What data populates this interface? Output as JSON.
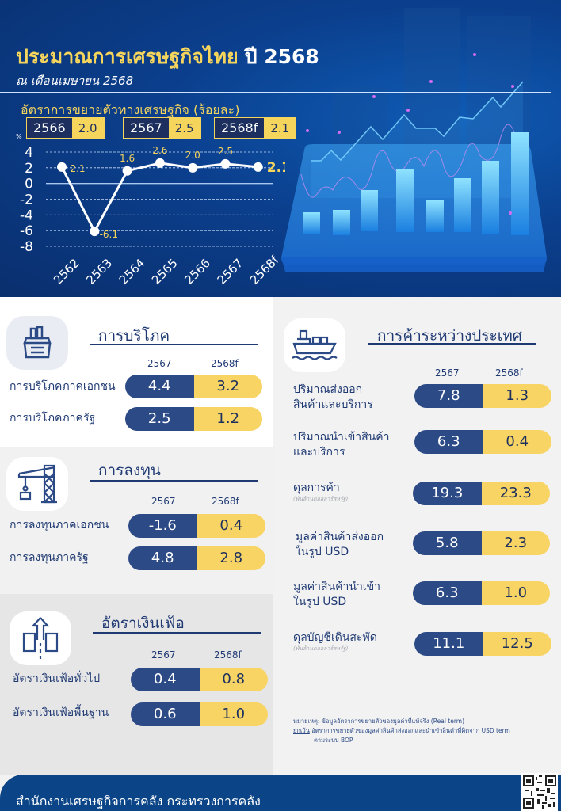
{
  "header": {
    "title_thai": "ประมาณการเศรษฐกิจไทย",
    "title_year": "ปี 2568",
    "subtitle": "ณ เดือนเมษายน 2568",
    "growth_title": "อัตราการขยายตัวทางเศรษฐกิจ (ร้อยละ)",
    "percent_unit": "%",
    "year_boxes": [
      {
        "year": "2566",
        "value": "2.0"
      },
      {
        "year": "2567",
        "value": "2.5"
      },
      {
        "year": "2568f",
        "value": "2.1"
      }
    ]
  },
  "chart_data": {
    "type": "line",
    "title": "อัตราการขยายตัวทางเศรษฐกิจ (ร้อยละ)",
    "xlabel": "",
    "ylabel": "%",
    "categories": [
      "2562",
      "2563",
      "2564",
      "2565",
      "2566",
      "2567",
      "2568f"
    ],
    "values": [
      2.1,
      -6.1,
      1.6,
      2.6,
      2.0,
      2.5,
      2.1
    ],
    "data_labels": [
      "2.1",
      "-6.1",
      "1.6",
      "2.6",
      "2.0",
      "2.5",
      "2.1"
    ],
    "yticks": [
      "4",
      "2",
      "0",
      "-2",
      "-4",
      "-6",
      "-8"
    ],
    "ylim": [
      -8,
      4
    ],
    "grid": "dashed horizontal",
    "legend": "none"
  },
  "sections": {
    "consumption": {
      "title": "การบริโภค",
      "icon": "shopping-basket-icon",
      "col_2567": "2567",
      "col_2568": "2568f",
      "rows": [
        {
          "label": "การบริโภคภาคเอกชน",
          "v2567": "4.4",
          "v2568": "3.2"
        },
        {
          "label": "การบริโภคภาครัฐ",
          "v2567": "2.5",
          "v2568": "1.2"
        }
      ]
    },
    "investment": {
      "title": "การลงทุน",
      "icon": "construction-crane-icon",
      "col_2567": "2567",
      "col_2568": "2568f",
      "rows": [
        {
          "label": "การลงทุนภาคเอกชน",
          "v2567": "-1.6",
          "v2568": "0.4"
        },
        {
          "label": "การลงทุนภาครัฐ",
          "v2567": "4.8",
          "v2568": "2.8"
        }
      ]
    },
    "inflation": {
      "title": "อัตราเงินเฟ้อ",
      "icon": "inflation-arrow-icon",
      "col_2567": "2567",
      "col_2568": "2568f",
      "rows": [
        {
          "label": "อัตราเงินเฟ้อทั่วไป",
          "v2567": "0.4",
          "v2568": "0.8"
        },
        {
          "label": "อัตราเงินเฟ้อพื้นฐาน",
          "v2567": "0.6",
          "v2568": "1.0"
        }
      ]
    },
    "trade": {
      "title": "การค้าระหว่างประเทศ",
      "icon": "cargo-ship-icon",
      "col_2567": "2567",
      "col_2568": "2568f",
      "rows": [
        {
          "label_1": "ปริมาณส่งออก",
          "label_2": "สินค้าและบริการ",
          "sub": "",
          "v2567": "7.8",
          "v2568": "1.3"
        },
        {
          "label_1": "ปริมาณนำเข้าสินค้า",
          "label_2": "และบริการ",
          "sub": "",
          "v2567": "6.3",
          "v2568": "0.4"
        },
        {
          "label_1": "ดุลการค้า",
          "label_2": "",
          "sub": "(พันล้านดอลลาร์สหรัฐ)",
          "v2567": "19.3",
          "v2568": "23.3"
        },
        {
          "label_1": "มูลค่าสินค้าส่งออก",
          "label_2": "ในรูป USD",
          "sub": "",
          "v2567": "5.8",
          "v2568": "2.3"
        },
        {
          "label_1": "มูลค่าสินค้านำเข้า",
          "label_2": "ในรูป USD",
          "sub": "",
          "v2567": "6.3",
          "v2568": "1.0"
        },
        {
          "label_1": "ดุลบัญชีเดินสะพัด",
          "label_2": "",
          "sub": "(พันล้านดอลลาร์สหรัฐ)",
          "v2567": "11.1",
          "v2568": "12.5"
        }
      ]
    }
  },
  "note": {
    "line1": "หมายเหตุ: ข้อมูลอัตราการขยายตัวของมูลค่าที่แท้จริง (Real term)",
    "except_label": "ยกเว้น",
    "line2": "อัตราการขยายตัวของมูลค่าสินค้าส่งออกและนำเข้าสินค้าที่คิดจาก USD term",
    "line3": "ตามระบบ BOP"
  },
  "footer": {
    "organization": "สำนักงานเศรษฐกิจการคลัง กระทรวงการคลัง"
  },
  "colors": {
    "navy": "#2c4a86",
    "yellow": "#f7d463",
    "header_bg": "#0b3f8d",
    "footer_bg": "#0b4587",
    "title_yellow": "#f6d55c"
  }
}
